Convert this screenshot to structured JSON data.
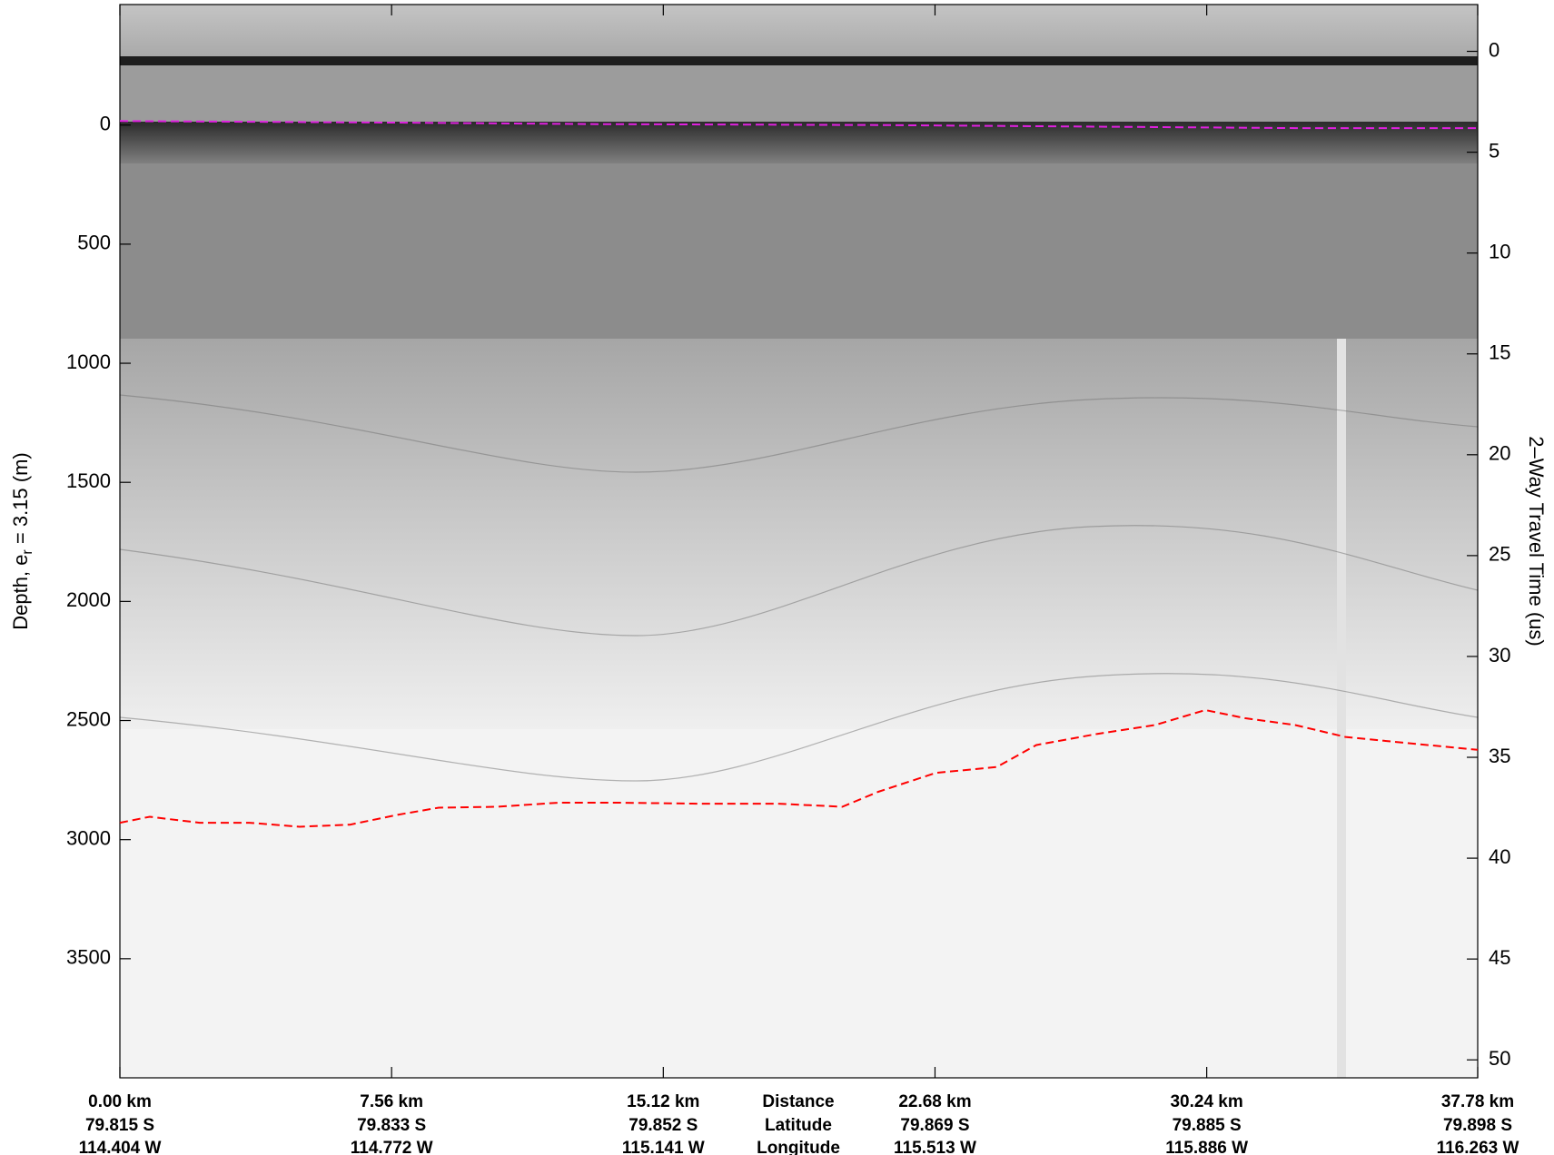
{
  "chart_data": {
    "type": "line",
    "ylabel": [
      "Depth, e",
      "r",
      " = 3.15 (m)"
    ],
    "y2label": "2–Way Travel Time (us)",
    "xlim": [
      0,
      37.78
    ],
    "xticks": [
      {
        "value": 0,
        "label": "0.00 km"
      },
      {
        "value": 7.56,
        "label": "7.56 km"
      },
      {
        "value": 15.12,
        "label": "15.12 km"
      },
      {
        "value": 22.68,
        "label": "22.68 km"
      },
      {
        "value": 30.24,
        "label": "30.24 km"
      },
      {
        "value": 37.78,
        "label": "37.78 km"
      }
    ],
    "latitude_labels": [
      "79.815 S",
      "79.833 S",
      "79.852 S",
      "79.869 S",
      "79.885 S",
      "79.898 S"
    ],
    "longitude_labels": [
      "114.404 W",
      "114.772 W",
      "115.141 W",
      "115.513 W",
      "115.886 W",
      "116.263 W"
    ],
    "row_titles": [
      "Distance",
      "Latitude",
      "Longitude"
    ],
    "ylim": [
      4000,
      -506
    ],
    "yticks": [
      0,
      500,
      1000,
      1500,
      2000,
      2500,
      3000,
      3500
    ],
    "y2lim": [
      50.89,
      -2.32
    ],
    "y2ticks": [
      0,
      5,
      10,
      15,
      20,
      25,
      30,
      35,
      40,
      45,
      50
    ],
    "series": [
      {
        "color": "#e020e0",
        "x": [
          0,
          8,
          13.3,
          21.1,
          32.7,
          37.78
        ],
        "values": [
          -17,
          -10,
          -4,
          0,
          13,
          13
        ]
      },
      {
        "color": "#ff0000",
        "x": [
          0,
          0.83,
          2.22,
          3.6,
          5.0,
          6.4,
          7.76,
          8.87,
          10.5,
          12.2,
          13.9,
          16.1,
          18.3,
          20.1,
          21.1,
          22.7,
          24.4,
          25.5,
          27.2,
          28.8,
          30.2,
          31.3,
          32.7,
          34.1,
          35.5,
          37.78
        ],
        "values": [
          2929,
          2904,
          2929,
          2929,
          2946,
          2937,
          2895,
          2866,
          2862,
          2845,
          2845,
          2849,
          2849,
          2862,
          2799,
          2720,
          2695,
          2603,
          2556,
          2519,
          2456,
          2490,
          2519,
          2569,
          2590,
          2623
        ]
      }
    ]
  }
}
